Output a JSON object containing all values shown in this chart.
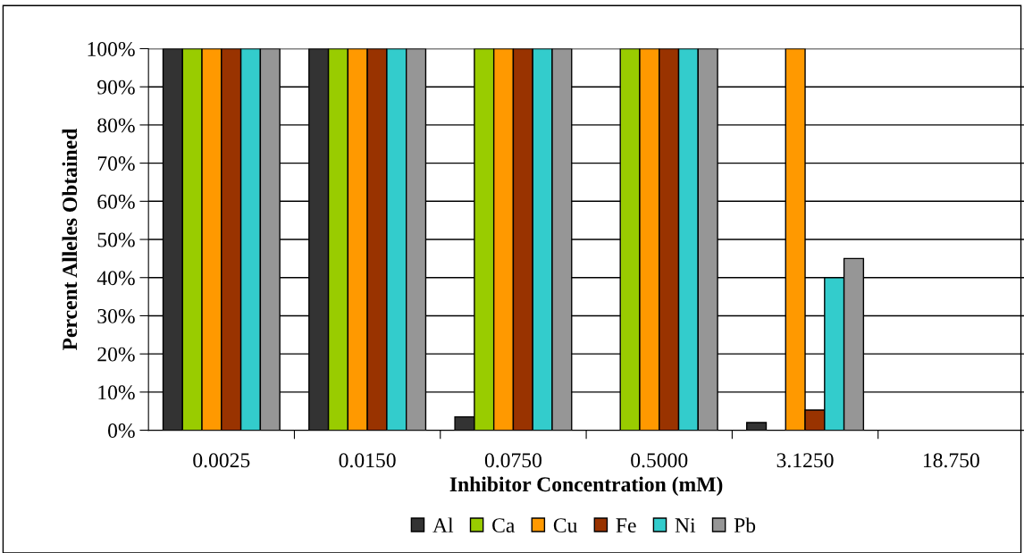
{
  "chart_data": {
    "type": "bar",
    "xlabel": "Inhibitor Concentration (mM)",
    "ylabel": "Percent Alleles Obtained",
    "categories": [
      "0.0025",
      "0.0150",
      "0.0750",
      "0.5000",
      "3.1250",
      "18.750"
    ],
    "series": [
      {
        "name": "Al",
        "color": "#333333",
        "values": [
          100,
          100,
          3.5,
          0,
          2,
          0
        ]
      },
      {
        "name": "Ca",
        "color": "#99cc00",
        "values": [
          100,
          100,
          100,
          100,
          0,
          0
        ]
      },
      {
        "name": "Cu",
        "color": "#ff9900",
        "values": [
          100,
          100,
          100,
          100,
          100,
          0
        ]
      },
      {
        "name": "Fe",
        "color": "#993300",
        "values": [
          100,
          100,
          100,
          100,
          5.3,
          0
        ]
      },
      {
        "name": "Ni",
        "color": "#33cccc",
        "values": [
          100,
          100,
          100,
          100,
          40,
          0
        ]
      },
      {
        "name": "Pb",
        "color": "#969696",
        "values": [
          100,
          100,
          100,
          100,
          45,
          0
        ]
      }
    ],
    "ylim": [
      0,
      100
    ],
    "yticks": [
      {
        "value": 0,
        "label": "0%"
      },
      {
        "value": 10,
        "label": "10%"
      },
      {
        "value": 20,
        "label": "20%"
      },
      {
        "value": 30,
        "label": "30%"
      },
      {
        "value": 40,
        "label": "40%"
      },
      {
        "value": 50,
        "label": "50%"
      },
      {
        "value": 60,
        "label": "60%"
      },
      {
        "value": 70,
        "label": "70%"
      },
      {
        "value": 80,
        "label": "80%"
      },
      {
        "value": 90,
        "label": "90%"
      },
      {
        "value": 100,
        "label": "100%"
      }
    ],
    "grid": "y",
    "legend": "bottom"
  }
}
